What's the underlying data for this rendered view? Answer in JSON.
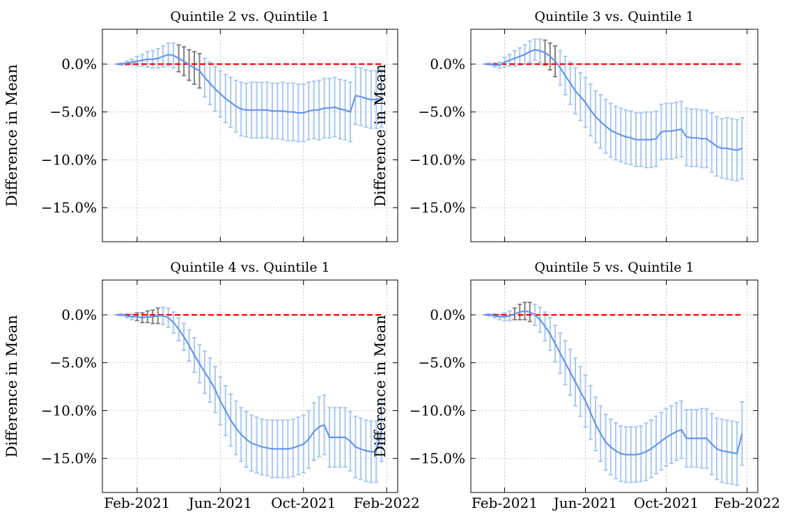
{
  "chart_data": [
    {
      "type": "errorline",
      "title": "Quintile 2 vs. Quintile 1",
      "ylabel": "Difference in Mean",
      "color": "#6495ed",
      "x": [
        0,
        0.25,
        0.5,
        0.75,
        1,
        1.25,
        1.5,
        1.75,
        2,
        2.25,
        2.5,
        2.75,
        3,
        3.25,
        3.5,
        3.75,
        4,
        4.25,
        4.5,
        4.75,
        5,
        5.25,
        5.5,
        5.75,
        6,
        6.25,
        6.5,
        6.75,
        7,
        7.25,
        7.5,
        7.75,
        8,
        8.25,
        8.5,
        8.75,
        9,
        9.25,
        9.5,
        9.75,
        10,
        10.25,
        10.5,
        10.75,
        11,
        11.25,
        11.5,
        11.75,
        12,
        12.25,
        12.5,
        12.75
      ],
      "values": [
        0,
        0,
        0.1,
        0.2,
        0.3,
        0.4,
        0.5,
        0.5,
        0.6,
        0.8,
        1.0,
        0.9,
        0.6,
        0.3,
        -0.1,
        -0.4,
        -0.7,
        -1.4,
        -2.0,
        -2.6,
        -3.1,
        -3.6,
        -4.0,
        -4.4,
        -4.7,
        -4.8,
        -4.8,
        -4.8,
        -4.8,
        -4.8,
        -4.9,
        -4.9,
        -4.9,
        -5.0,
        -5.0,
        -5.1,
        -5.1,
        -4.9,
        -4.8,
        -4.8,
        -4.6,
        -4.6,
        -4.5,
        -4.7,
        -4.8,
        -5.0,
        -3.3,
        -3.4,
        -3.6,
        -3.7,
        -3.7,
        -3.6
      ],
      "errors": [
        0,
        0.1,
        0.2,
        0.3,
        0.5,
        0.6,
        0.8,
        0.9,
        1.0,
        1.1,
        1.2,
        1.3,
        1.4,
        1.5,
        1.6,
        1.7,
        1.8,
        2.0,
        2.2,
        2.3,
        2.4,
        2.5,
        2.6,
        2.7,
        2.8,
        2.8,
        2.9,
        2.9,
        2.9,
        2.9,
        2.9,
        2.9,
        3.0,
        3.0,
        3.0,
        3.0,
        3.0,
        3.0,
        3.0,
        3.1,
        3.1,
        3.1,
        3.1,
        3.1,
        3.1,
        3.1,
        3.0,
        3.0,
        3.0,
        3.0,
        3.0,
        3.0
      ],
      "error_colors": [
        "#a9c8f2",
        "#a9c8f2",
        "#a9c8f2",
        "#a9c8f2",
        "#a9c8f2",
        "#a9c8f2",
        "#a9c8f2",
        "#a9c8f2",
        "#a9c8f2",
        "#a9c8f2",
        "#a9c8f2",
        "#a9c8f2",
        "#808080",
        "#808080",
        "#808080",
        "#808080",
        "#808080",
        "#a9c8f2",
        "#a9c8f2",
        "#a9c8f2",
        "#a9c8f2",
        "#a9c8f2",
        "#a9c8f2",
        "#a9c8f2",
        "#a9c8f2",
        "#a9c8f2",
        "#a9c8f2",
        "#a9c8f2",
        "#a9c8f2",
        "#a9c8f2",
        "#a9c8f2",
        "#a9c8f2",
        "#a9c8f2",
        "#a9c8f2",
        "#a9c8f2",
        "#a9c8f2",
        "#a9c8f2",
        "#a9c8f2",
        "#a9c8f2",
        "#a9c8f2",
        "#a9c8f2",
        "#a9c8f2",
        "#a9c8f2",
        "#a9c8f2",
        "#a9c8f2",
        "#a9c8f2",
        "#a9c8f2",
        "#a9c8f2",
        "#a9c8f2",
        "#a9c8f2",
        "#a9c8f2",
        "#a9c8f2"
      ],
      "hline": 0,
      "hline_color": "#ff0000",
      "xlim": [
        -0.67,
        13.53
      ],
      "xticks": [
        1,
        5,
        9,
        13
      ],
      "ylim": [
        -18.56,
        3.64
      ],
      "yticks": [
        {
          "value": 0,
          "label": "0.0%"
        },
        {
          "value": -5,
          "label": "−5.0%"
        },
        {
          "value": -10,
          "label": "−10.0%"
        },
        {
          "value": -15,
          "label": "−15.0%"
        }
      ],
      "grid": true
    },
    {
      "type": "errorline",
      "title": "Quintile 3 vs. Quintile 1",
      "ylabel": "Difference in Mean",
      "color": "#6495ed",
      "x": [
        0,
        0.25,
        0.5,
        0.75,
        1,
        1.25,
        1.5,
        1.75,
        2,
        2.25,
        2.5,
        2.75,
        3,
        3.25,
        3.5,
        3.75,
        4,
        4.25,
        4.5,
        4.75,
        5,
        5.25,
        5.5,
        5.75,
        6,
        6.25,
        6.5,
        6.75,
        7,
        7.25,
        7.5,
        7.75,
        8,
        8.25,
        8.5,
        8.75,
        9,
        9.25,
        9.5,
        9.75,
        10,
        10.25,
        10.5,
        10.75,
        11,
        11.25,
        11.5,
        11.75,
        12,
        12.25,
        12.5,
        12.75
      ],
      "values": [
        0,
        0,
        -0.1,
        -0.1,
        0.2,
        0.4,
        0.6,
        0.8,
        1.0,
        1.3,
        1.5,
        1.4,
        1.2,
        0.8,
        0.3,
        -0.4,
        -1.2,
        -2.0,
        -2.8,
        -3.4,
        -4.0,
        -4.8,
        -5.5,
        -6.0,
        -6.5,
        -6.9,
        -7.2,
        -7.4,
        -7.6,
        -7.7,
        -7.9,
        -7.9,
        -7.9,
        -7.9,
        -7.8,
        -7.1,
        -7.0,
        -7.0,
        -6.9,
        -6.8,
        -7.6,
        -7.7,
        -7.7,
        -7.8,
        -7.8,
        -8.2,
        -8.6,
        -8.8,
        -8.8,
        -8.9,
        -9.0,
        -8.8
      ],
      "errors": [
        0,
        0.1,
        0.2,
        0.3,
        0.5,
        0.6,
        0.8,
        0.9,
        1.0,
        1.1,
        1.1,
        1.2,
        1.3,
        1.4,
        1.6,
        1.8,
        2.0,
        2.2,
        2.4,
        2.5,
        2.6,
        2.7,
        2.7,
        2.8,
        2.8,
        2.8,
        2.8,
        2.8,
        2.8,
        2.8,
        2.8,
        2.8,
        2.9,
        2.9,
        2.9,
        2.9,
        2.9,
        2.9,
        2.9,
        2.9,
        3.0,
        3.0,
        3.0,
        3.0,
        3.0,
        3.1,
        3.1,
        3.1,
        3.2,
        3.2,
        3.2,
        3.2
      ],
      "error_colors": [
        "#a9c8f2",
        "#a9c8f2",
        "#a9c8f2",
        "#a9c8f2",
        "#a9c8f2",
        "#a9c8f2",
        "#a9c8f2",
        "#a9c8f2",
        "#a9c8f2",
        "#a9c8f2",
        "#a9c8f2",
        "#a9c8f2",
        "#808080",
        "#808080",
        "#808080",
        "#a9c8f2",
        "#a9c8f2",
        "#a9c8f2",
        "#a9c8f2",
        "#a9c8f2",
        "#a9c8f2",
        "#a9c8f2",
        "#a9c8f2",
        "#a9c8f2",
        "#a9c8f2",
        "#a9c8f2",
        "#a9c8f2",
        "#a9c8f2",
        "#a9c8f2",
        "#a9c8f2",
        "#a9c8f2",
        "#a9c8f2",
        "#a9c8f2",
        "#a9c8f2",
        "#a9c8f2",
        "#a9c8f2",
        "#a9c8f2",
        "#a9c8f2",
        "#a9c8f2",
        "#a9c8f2",
        "#a9c8f2",
        "#a9c8f2",
        "#a9c8f2",
        "#a9c8f2",
        "#a9c8f2",
        "#a9c8f2",
        "#a9c8f2",
        "#a9c8f2",
        "#a9c8f2",
        "#a9c8f2",
        "#a9c8f2",
        "#a9c8f2"
      ],
      "hline": 0,
      "hline_color": "#ff0000",
      "xlim": [
        -0.67,
        13.53
      ],
      "xticks": [
        1,
        5,
        9,
        13
      ],
      "ylim": [
        -18.56,
        3.64
      ],
      "yticks": [
        {
          "value": 0,
          "label": "0.0%"
        },
        {
          "value": -5,
          "label": "−5.0%"
        },
        {
          "value": -10,
          "label": "−10.0%"
        },
        {
          "value": -15,
          "label": "−15.0%"
        }
      ],
      "grid": true
    },
    {
      "type": "errorline",
      "title": "Quintile 4 vs. Quintile 1",
      "ylabel": "Difference in Mean",
      "color": "#6495ed",
      "x": [
        0,
        0.25,
        0.5,
        0.75,
        1,
        1.25,
        1.5,
        1.75,
        2,
        2.25,
        2.5,
        2.75,
        3,
        3.25,
        3.5,
        3.75,
        4,
        4.25,
        4.5,
        4.75,
        5,
        5.25,
        5.5,
        5.75,
        6,
        6.25,
        6.5,
        6.75,
        7,
        7.25,
        7.5,
        7.75,
        8,
        8.25,
        8.5,
        8.75,
        9,
        9.25,
        9.5,
        9.75,
        10,
        10.25,
        10.5,
        10.75,
        11,
        11.25,
        11.5,
        11.75,
        12,
        12.25,
        12.5,
        12.75
      ],
      "values": [
        0,
        0,
        -0.1,
        -0.2,
        -0.2,
        -0.3,
        -0.2,
        -0.2,
        -0.1,
        -0.1,
        -0.3,
        -0.8,
        -1.5,
        -2.3,
        -3.2,
        -4.2,
        -5.1,
        -6.0,
        -6.8,
        -7.8,
        -9.0,
        -10.0,
        -11.0,
        -11.8,
        -12.5,
        -13.0,
        -13.4,
        -13.6,
        -13.8,
        -13.9,
        -14.0,
        -14.0,
        -14.0,
        -14.0,
        -13.9,
        -13.7,
        -13.5,
        -13.0,
        -12.2,
        -11.7,
        -11.5,
        -12.8,
        -12.8,
        -12.8,
        -12.8,
        -13.2,
        -13.8,
        -14.0,
        -14.2,
        -14.3,
        -14.3,
        -12.1
      ],
      "errors": [
        0,
        0.1,
        0.2,
        0.3,
        0.4,
        0.5,
        0.6,
        0.7,
        0.8,
        0.9,
        1.0,
        1.1,
        1.2,
        1.4,
        1.6,
        1.8,
        2.0,
        2.2,
        2.3,
        2.4,
        2.5,
        2.6,
        2.7,
        2.8,
        2.8,
        2.9,
        2.9,
        2.9,
        2.9,
        2.9,
        3.0,
        3.0,
        3.0,
        3.0,
        3.0,
        3.0,
        3.0,
        3.0,
        3.0,
        3.1,
        3.1,
        3.1,
        3.1,
        3.1,
        3.1,
        3.1,
        3.2,
        3.2,
        3.2,
        3.2,
        3.2,
        3.2
      ],
      "error_colors": [
        "#a9c8f2",
        "#a9c8f2",
        "#a9c8f2",
        "#a9c8f2",
        "#808080",
        "#808080",
        "#808080",
        "#808080",
        "#808080",
        "#a9c8f2",
        "#a9c8f2",
        "#a9c8f2",
        "#a9c8f2",
        "#a9c8f2",
        "#a9c8f2",
        "#a9c8f2",
        "#a9c8f2",
        "#a9c8f2",
        "#a9c8f2",
        "#a9c8f2",
        "#a9c8f2",
        "#a9c8f2",
        "#a9c8f2",
        "#a9c8f2",
        "#a9c8f2",
        "#a9c8f2",
        "#a9c8f2",
        "#a9c8f2",
        "#a9c8f2",
        "#a9c8f2",
        "#a9c8f2",
        "#a9c8f2",
        "#a9c8f2",
        "#a9c8f2",
        "#a9c8f2",
        "#a9c8f2",
        "#a9c8f2",
        "#a9c8f2",
        "#a9c8f2",
        "#a9c8f2",
        "#a9c8f2",
        "#a9c8f2",
        "#a9c8f2",
        "#a9c8f2",
        "#a9c8f2",
        "#a9c8f2",
        "#a9c8f2",
        "#a9c8f2",
        "#a9c8f2",
        "#a9c8f2",
        "#a9c8f2",
        "#a9c8f2"
      ],
      "hline": 0,
      "hline_color": "#ff0000",
      "xlim": [
        -0.67,
        13.53
      ],
      "xticks": [
        {
          "value": 1,
          "label": "Feb-2021"
        },
        {
          "value": 5,
          "label": "Jun-2021"
        },
        {
          "value": 9,
          "label": "Oct-2021"
        },
        {
          "value": 13,
          "label": "Feb-2022"
        }
      ],
      "ylim": [
        -18.56,
        3.64
      ],
      "yticks": [
        {
          "value": 0,
          "label": "0.0%"
        },
        {
          "value": -5,
          "label": "−5.0%"
        },
        {
          "value": -10,
          "label": "−10.0%"
        },
        {
          "value": -15,
          "label": "−15.0%"
        }
      ],
      "grid": true
    },
    {
      "type": "errorline",
      "title": "Quintile 5 vs. Quintile 1",
      "ylabel": "Difference in Mean",
      "color": "#6495ed",
      "x": [
        0,
        0.25,
        0.5,
        0.75,
        1,
        1.25,
        1.5,
        1.75,
        2,
        2.25,
        2.5,
        2.75,
        3,
        3.25,
        3.5,
        3.75,
        4,
        4.25,
        4.5,
        4.75,
        5,
        5.25,
        5.5,
        5.75,
        6,
        6.25,
        6.5,
        6.75,
        7,
        7.25,
        7.5,
        7.75,
        8,
        8.25,
        8.5,
        8.75,
        9,
        9.25,
        9.5,
        9.75,
        10,
        10.25,
        10.5,
        10.75,
        11,
        11.25,
        11.5,
        11.75,
        12,
        12.25,
        12.5,
        12.75
      ],
      "values": [
        0,
        0,
        -0.1,
        -0.2,
        -0.2,
        -0.1,
        0.1,
        0.3,
        0.4,
        0.3,
        0.0,
        -0.5,
        -1.2,
        -2.0,
        -3.0,
        -4.0,
        -5.0,
        -6.0,
        -7.0,
        -8.0,
        -9.0,
        -10.2,
        -11.4,
        -12.4,
        -13.3,
        -13.8,
        -14.2,
        -14.5,
        -14.6,
        -14.6,
        -14.6,
        -14.5,
        -14.3,
        -14.0,
        -13.6,
        -13.2,
        -12.8,
        -12.5,
        -12.2,
        -12.0,
        -12.9,
        -12.9,
        -12.9,
        -12.9,
        -12.9,
        -13.5,
        -14.0,
        -14.2,
        -14.3,
        -14.4,
        -14.5,
        -12.4
      ],
      "errors": [
        0,
        0.1,
        0.2,
        0.3,
        0.4,
        0.5,
        0.6,
        0.8,
        0.9,
        1.0,
        1.1,
        1.3,
        1.5,
        1.7,
        1.9,
        2.1,
        2.3,
        2.4,
        2.5,
        2.6,
        2.7,
        2.8,
        2.8,
        2.9,
        2.9,
        2.9,
        2.9,
        2.9,
        2.9,
        2.9,
        2.9,
        2.9,
        3.0,
        3.0,
        3.0,
        3.0,
        3.0,
        3.0,
        3.0,
        3.0,
        3.0,
        3.0,
        3.0,
        3.1,
        3.1,
        3.2,
        3.2,
        3.3,
        3.3,
        3.3,
        3.3,
        3.3
      ],
      "error_colors": [
        "#a9c8f2",
        "#a9c8f2",
        "#a9c8f2",
        "#a9c8f2",
        "#a9c8f2",
        "#a9c8f2",
        "#808080",
        "#808080",
        "#808080",
        "#808080",
        "#a9c8f2",
        "#a9c8f2",
        "#a9c8f2",
        "#a9c8f2",
        "#a9c8f2",
        "#a9c8f2",
        "#a9c8f2",
        "#a9c8f2",
        "#a9c8f2",
        "#a9c8f2",
        "#a9c8f2",
        "#a9c8f2",
        "#a9c8f2",
        "#a9c8f2",
        "#a9c8f2",
        "#a9c8f2",
        "#a9c8f2",
        "#a9c8f2",
        "#a9c8f2",
        "#a9c8f2",
        "#a9c8f2",
        "#a9c8f2",
        "#a9c8f2",
        "#a9c8f2",
        "#a9c8f2",
        "#a9c8f2",
        "#a9c8f2",
        "#a9c8f2",
        "#a9c8f2",
        "#a9c8f2",
        "#a9c8f2",
        "#a9c8f2",
        "#a9c8f2",
        "#a9c8f2",
        "#a9c8f2",
        "#a9c8f2",
        "#a9c8f2",
        "#a9c8f2",
        "#a9c8f2",
        "#a9c8f2",
        "#a9c8f2",
        "#a9c8f2"
      ],
      "hline": 0,
      "hline_color": "#ff0000",
      "xlim": [
        -0.67,
        13.53
      ],
      "xticks": [
        {
          "value": 1,
          "label": "Feb-2021"
        },
        {
          "value": 5,
          "label": "Jun-2021"
        },
        {
          "value": 9,
          "label": "Oct-2021"
        },
        {
          "value": 13,
          "label": "Feb-2022"
        }
      ],
      "ylim": [
        -18.56,
        3.64
      ],
      "yticks": [
        {
          "value": 0,
          "label": "0.0%"
        },
        {
          "value": -5,
          "label": "−5.0%"
        },
        {
          "value": -10,
          "label": "−10.0%"
        },
        {
          "value": -15,
          "label": "−15.0%"
        }
      ],
      "grid": true
    }
  ]
}
